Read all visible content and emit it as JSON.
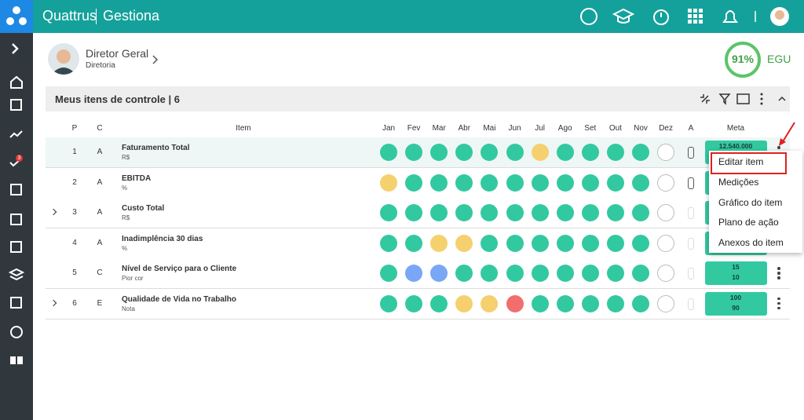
{
  "header": {
    "brand": "Quattrus",
    "product": "Gestiona"
  },
  "sidebar": {
    "badge": "3"
  },
  "profile": {
    "name": "Diretor Geral",
    "unit": "Diretoria",
    "score": "91%",
    "score_label": "EGU"
  },
  "panel": {
    "title": "Meus itens de controle | 6",
    "columns": {
      "p": "P",
      "c": "C",
      "item": "Item",
      "months": [
        "Jan",
        "Fev",
        "Mar",
        "Abr",
        "Mai",
        "Jun",
        "Jul",
        "Ago",
        "Set",
        "Out",
        "Nov",
        "Dez"
      ],
      "a": "A",
      "meta": "Meta"
    }
  },
  "rows": [
    {
      "p": 1,
      "c": "A",
      "name": "Faturamento Total",
      "unit": "R$",
      "expandable": false,
      "attachment": true,
      "status": [
        "green",
        "green",
        "green",
        "green",
        "green",
        "green",
        "yellow",
        "green",
        "green",
        "green",
        "green",
        "empty"
      ],
      "meta": [
        "12.540.000"
      ]
    },
    {
      "p": 2,
      "c": "A",
      "name": "EBITDA",
      "unit": "%",
      "expandable": false,
      "attachment": true,
      "status": [
        "yellow",
        "green",
        "green",
        "green",
        "green",
        "green",
        "green",
        "green",
        "green",
        "green",
        "green",
        "empty"
      ],
      "meta": []
    },
    {
      "p": 3,
      "c": "A",
      "name": "Custo Total",
      "unit": "R$",
      "expandable": true,
      "attachment": false,
      "status": [
        "green",
        "green",
        "green",
        "green",
        "green",
        "green",
        "green",
        "green",
        "green",
        "green",
        "green",
        "empty"
      ],
      "meta": []
    },
    {
      "p": 4,
      "c": "A",
      "name": "Inadimplência 30 dias",
      "unit": "%",
      "expandable": false,
      "attachment": false,
      "status": [
        "green",
        "green",
        "yellow",
        "yellow",
        "green",
        "green",
        "green",
        "green",
        "green",
        "green",
        "green",
        "empty"
      ],
      "meta": []
    },
    {
      "p": 5,
      "c": "C",
      "name": "Nível de Serviço para o Cliente",
      "unit": "Pior cor",
      "expandable": false,
      "attachment": false,
      "status": [
        "green",
        "blue",
        "blue",
        "green",
        "green",
        "green",
        "green",
        "green",
        "green",
        "green",
        "green",
        "empty"
      ],
      "meta": [
        "15",
        "10"
      ]
    },
    {
      "p": 6,
      "c": "E",
      "name": "Qualidade de Vida no Trabalho",
      "unit": "Nota",
      "expandable": true,
      "attachment": false,
      "status": [
        "green",
        "green",
        "green",
        "yellow",
        "yellow",
        "red",
        "green",
        "green",
        "green",
        "green",
        "green",
        "empty"
      ],
      "meta": [
        "100",
        "90"
      ]
    }
  ],
  "menu": [
    "Editar item",
    "Medições",
    "Gráfico do item",
    "Plano de ação",
    "Anexos do item"
  ]
}
